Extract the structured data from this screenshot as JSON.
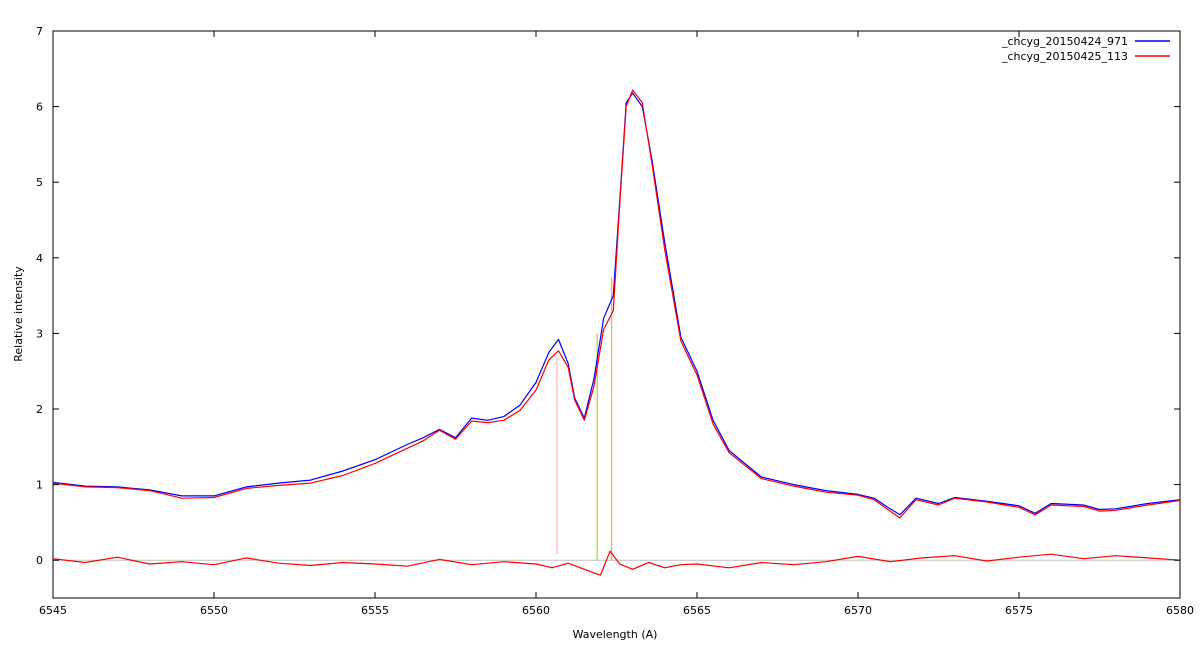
{
  "chart_data": {
    "type": "line",
    "title": "",
    "xlabel": "Wavelength (A)",
    "ylabel": "Relative intensity",
    "xlim": [
      6545,
      6580
    ],
    "ylim": [
      -0.5,
      7
    ],
    "x_ticks": [
      6545,
      6550,
      6555,
      6560,
      6565,
      6570,
      6575,
      6580
    ],
    "x_tick_labels": [
      "6545",
      "6550",
      "6555",
      "6560",
      "6565",
      "6570",
      "6575",
      "6580"
    ],
    "y_ticks": [
      0,
      1,
      2,
      3,
      4,
      5,
      6,
      7
    ],
    "y_tick_labels": [
      "0",
      "1",
      "2",
      "3",
      "4",
      "5",
      "6",
      "7"
    ],
    "grid": false,
    "legend_position": "top-right",
    "series": [
      {
        "name": "_chcyg_20150424_971",
        "color": "#0000ff",
        "x": [
          6545,
          6546,
          6547,
          6548,
          6549,
          6550,
          6551,
          6552,
          6553,
          6554,
          6555,
          6556,
          6556.5,
          6557,
          6557.5,
          6558,
          6558.5,
          6559,
          6559.5,
          6560,
          6560.4,
          6560.7,
          6561,
          6561.2,
          6561.5,
          6561.8,
          6562.1,
          6562.4,
          6562.6,
          6562.8,
          6563.0,
          6563.3,
          6563.6,
          6564,
          6564.5,
          6565,
          6565.5,
          6566,
          6567,
          6568,
          6569,
          6570,
          6570.5,
          6571,
          6571.3,
          6571.8,
          6572.5,
          6573,
          6574,
          6575,
          6575.5,
          6576,
          6577,
          6577.5,
          6578,
          6579,
          6580
        ],
        "y": [
          1.03,
          0.98,
          0.97,
          0.93,
          0.85,
          0.85,
          0.97,
          1.02,
          1.06,
          1.18,
          1.33,
          1.53,
          1.62,
          1.73,
          1.62,
          1.88,
          1.85,
          1.9,
          2.05,
          2.35,
          2.75,
          2.92,
          2.6,
          2.15,
          1.88,
          2.4,
          3.2,
          3.5,
          4.75,
          6.05,
          6.18,
          6.0,
          5.3,
          4.2,
          2.95,
          2.5,
          1.85,
          1.45,
          1.1,
          1.0,
          0.92,
          0.87,
          0.82,
          0.68,
          0.6,
          0.82,
          0.75,
          0.83,
          0.78,
          0.72,
          0.62,
          0.75,
          0.73,
          0.67,
          0.68,
          0.75,
          0.8
        ]
      },
      {
        "name": "_chcyg_20150425_113",
        "color": "#ff0000",
        "x": [
          6545,
          6546,
          6547,
          6548,
          6549,
          6550,
          6551,
          6552,
          6553,
          6554,
          6555,
          6556,
          6556.5,
          6557,
          6557.5,
          6558,
          6558.5,
          6559,
          6559.5,
          6560,
          6560.4,
          6560.7,
          6561,
          6561.2,
          6561.5,
          6561.8,
          6562.1,
          6562.4,
          6562.6,
          6562.8,
          6563.0,
          6563.3,
          6563.6,
          6564,
          6564.5,
          6565,
          6565.5,
          6566,
          6567,
          6568,
          6569,
          6570,
          6570.5,
          6571,
          6571.3,
          6571.8,
          6572.5,
          6573,
          6574,
          6575,
          6575.5,
          6576,
          6577,
          6577.5,
          6578,
          6579,
          6580
        ],
        "y": [
          1.02,
          0.97,
          0.96,
          0.92,
          0.82,
          0.83,
          0.95,
          0.99,
          1.02,
          1.12,
          1.28,
          1.48,
          1.58,
          1.72,
          1.6,
          1.84,
          1.82,
          1.85,
          1.98,
          2.25,
          2.65,
          2.77,
          2.55,
          2.12,
          1.85,
          2.3,
          3.05,
          3.3,
          4.7,
          6.0,
          6.22,
          6.05,
          5.25,
          4.1,
          2.9,
          2.45,
          1.8,
          1.42,
          1.08,
          0.98,
          0.9,
          0.86,
          0.8,
          0.65,
          0.56,
          0.8,
          0.73,
          0.82,
          0.77,
          0.7,
          0.6,
          0.73,
          0.71,
          0.65,
          0.66,
          0.73,
          0.79
        ]
      },
      {
        "color": "#ff0000",
        "x": [
          6545,
          6546,
          6547,
          6548,
          6549,
          6550,
          6551,
          6552,
          6553,
          6554,
          6555,
          6556,
          6557,
          6558,
          6559,
          6560,
          6560.5,
          6561,
          6561.5,
          6562,
          6562.3,
          6562.6,
          6563,
          6563.5,
          6564,
          6564.5,
          6565,
          6566,
          6567,
          6568,
          6569,
          6570,
          6571,
          6572,
          6573,
          6574,
          6575,
          6576,
          6577,
          6578,
          6579,
          6580
        ],
        "y": [
          0.02,
          -0.03,
          0.04,
          -0.05,
          -0.02,
          -0.06,
          0.03,
          -0.04,
          -0.07,
          -0.03,
          -0.05,
          -0.08,
          0.01,
          -0.06,
          -0.02,
          -0.05,
          -0.1,
          -0.04,
          -0.12,
          -0.2,
          0.12,
          -0.05,
          -0.12,
          -0.03,
          -0.1,
          -0.06,
          -0.05,
          -0.1,
          -0.03,
          -0.06,
          -0.02,
          0.05,
          -0.02,
          0.03,
          0.06,
          -0.01,
          0.04,
          0.08,
          0.02,
          0.06,
          0.03,
          0.0
        ]
      }
    ],
    "reference_line": {
      "y": 0,
      "color": "#c0c0c0"
    },
    "vertical_markers": [
      {
        "x": 6560.65,
        "y0": 0.08,
        "y1": 2.7,
        "color": "#ffaaaa"
      },
      {
        "x": 6561.9,
        "y0": 0.0,
        "y1": 3.0,
        "color": "#99cc00"
      },
      {
        "x": 6562.35,
        "y0": 0.0,
        "y1": 3.75,
        "color": "#ff9933"
      }
    ]
  }
}
